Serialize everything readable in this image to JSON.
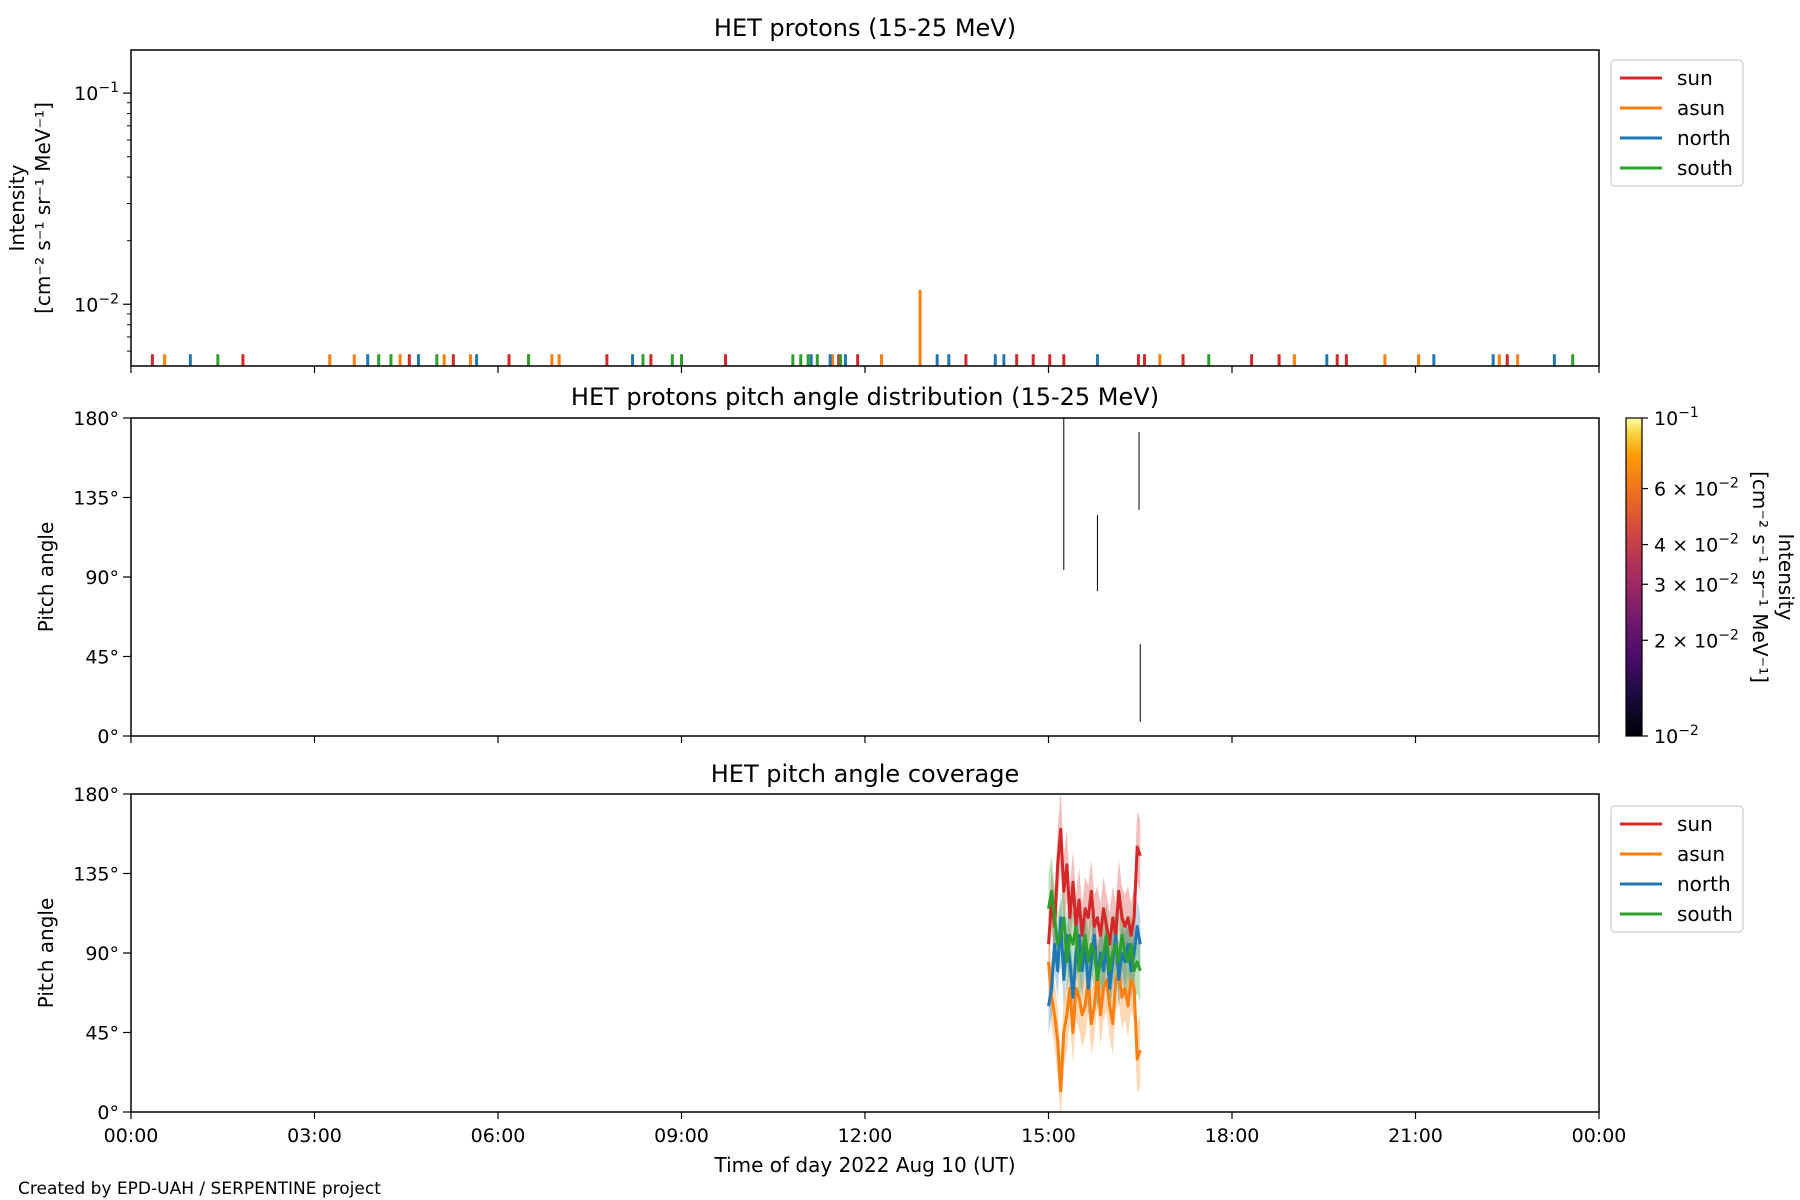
{
  "footer": "Created by EPD-UAH / SERPENTINE project",
  "xaxis": {
    "label": "Time of day 2022 Aug 10 (UT)",
    "range_hours": [
      0,
      24
    ],
    "ticks": [
      0,
      3,
      6,
      9,
      12,
      15,
      18,
      21,
      24
    ],
    "tick_labels": [
      "00:00",
      "03:00",
      "06:00",
      "09:00",
      "12:00",
      "15:00",
      "18:00",
      "21:00",
      "00:00"
    ]
  },
  "colors": {
    "sun": "#d62728",
    "asun": "#ff7f0e",
    "north": "#1f77b4",
    "south": "#2ca02c"
  },
  "chart_data": [
    {
      "type": "line",
      "title": "HET protons (15-25 MeV)",
      "ylabel": [
        "Intensity",
        "[cm⁻² s⁻¹ sr⁻¹ MeV⁻¹]"
      ],
      "yscale": "log",
      "ylim": [
        0.0051,
        0.16
      ],
      "yticks": [
        {
          "value": 0.1,
          "base": "10",
          "exp": "−1"
        },
        {
          "value": 0.01,
          "base": "10",
          "exp": "−2"
        }
      ],
      "legend": {
        "position": "outside-right",
        "entries": [
          "sun",
          "asun",
          "north",
          "south"
        ]
      },
      "baseline": 0.005,
      "spike_value": 0.0058,
      "series": [
        {
          "name": "sun",
          "spikes": [
            {
              "x": 0.35
            },
            {
              "x": 1.83
            },
            {
              "x": 4.55
            },
            {
              "x": 5.27
            },
            {
              "x": 6.18
            },
            {
              "x": 7.78
            },
            {
              "x": 8.5
            },
            {
              "x": 9.72
            },
            {
              "x": 11.57
            },
            {
              "x": 11.88
            },
            {
              "x": 13.65
            },
            {
              "x": 14.48
            },
            {
              "x": 14.75
            },
            {
              "x": 15.02
            },
            {
              "x": 15.25
            },
            {
              "x": 16.47
            },
            {
              "x": 16.57
            },
            {
              "x": 17.2
            },
            {
              "x": 18.32
            },
            {
              "x": 18.77
            },
            {
              "x": 19.72
            },
            {
              "x": 19.87
            },
            {
              "x": 22.5
            }
          ]
        },
        {
          "name": "asun",
          "spikes": [
            {
              "x": 0.55
            },
            {
              "x": 3.25
            },
            {
              "x": 3.65
            },
            {
              "x": 4.4
            },
            {
              "x": 5.12
            },
            {
              "x": 5.55
            },
            {
              "x": 6.5
            },
            {
              "x": 6.88
            },
            {
              "x": 7.0
            },
            {
              "x": 11.47
            },
            {
              "x": 12.27
            },
            {
              "x": 12.9,
              "y": 0.0117
            },
            {
              "x": 16.82
            },
            {
              "x": 19.02
            },
            {
              "x": 20.5
            },
            {
              "x": 21.05
            },
            {
              "x": 22.37
            },
            {
              "x": 22.67
            }
          ]
        },
        {
          "name": "north",
          "spikes": [
            {
              "x": 0.97
            },
            {
              "x": 3.87
            },
            {
              "x": 4.7
            },
            {
              "x": 5.65
            },
            {
              "x": 8.2
            },
            {
              "x": 11.12
            },
            {
              "x": 11.43
            },
            {
              "x": 11.68
            },
            {
              "x": 13.18
            },
            {
              "x": 13.37
            },
            {
              "x": 14.13
            },
            {
              "x": 14.27
            },
            {
              "x": 15.8
            },
            {
              "x": 19.55
            },
            {
              "x": 21.3
            },
            {
              "x": 22.27
            },
            {
              "x": 23.27
            }
          ]
        },
        {
          "name": "south",
          "spikes": [
            {
              "x": 1.42
            },
            {
              "x": 4.05
            },
            {
              "x": 4.25
            },
            {
              "x": 5.0
            },
            {
              "x": 6.5
            },
            {
              "x": 8.37
            },
            {
              "x": 8.85
            },
            {
              "x": 9.0
            },
            {
              "x": 10.82
            },
            {
              "x": 10.95
            },
            {
              "x": 11.07
            },
            {
              "x": 11.22
            },
            {
              "x": 11.6
            },
            {
              "x": 17.62
            },
            {
              "x": 23.57
            }
          ]
        }
      ]
    },
    {
      "type": "heatmap",
      "title": "HET protons pitch angle distribution (15-25 MeV)",
      "ylabel": "Pitch angle",
      "ylim": [
        0,
        180
      ],
      "yticks": [
        0,
        45,
        90,
        135,
        180
      ],
      "ytick_labels": [
        "0°",
        "45°",
        "90°",
        "135°",
        "180°"
      ],
      "segments": [
        {
          "x": 15.25,
          "y0": 94,
          "y1": 180
        },
        {
          "x": 15.8,
          "y0": 82,
          "y1": 125
        },
        {
          "x": 16.48,
          "y0": 128,
          "y1": 172
        },
        {
          "x": 16.5,
          "y0": 8,
          "y1": 52
        }
      ],
      "colorbar": {
        "label": [
          "Intensity",
          "[cm⁻² s⁻¹ sr⁻¹ MeV⁻¹]"
        ],
        "scale": "log",
        "range": [
          0.01,
          0.1
        ],
        "colormap": "inferno",
        "ticks": [
          {
            "value": 0.1,
            "mant": "",
            "exp": "−1"
          },
          {
            "value": 0.06,
            "mant": "6 × ",
            "exp": "−2"
          },
          {
            "value": 0.04,
            "mant": "4 × ",
            "exp": "−2"
          },
          {
            "value": 0.03,
            "mant": "3 × ",
            "exp": "−2"
          },
          {
            "value": 0.02,
            "mant": "2 × ",
            "exp": "−2"
          },
          {
            "value": 0.01,
            "mant": "",
            "exp": "−2"
          }
        ]
      }
    },
    {
      "type": "area",
      "title": "HET pitch angle coverage",
      "ylabel": "Pitch angle",
      "ylim": [
        0,
        180
      ],
      "yticks": [
        0,
        45,
        90,
        135,
        180
      ],
      "ytick_labels": [
        "0°",
        "45°",
        "90°",
        "135°",
        "180°"
      ],
      "legend": {
        "position": "outside-right",
        "entries": [
          "sun",
          "asun",
          "north",
          "south"
        ]
      },
      "x": [
        15.0,
        15.05,
        15.1,
        15.15,
        15.2,
        15.25,
        15.3,
        15.35,
        15.4,
        15.45,
        15.5,
        15.55,
        15.6,
        15.65,
        15.7,
        15.75,
        15.8,
        15.85,
        15.9,
        15.95,
        16.0,
        16.05,
        16.1,
        16.15,
        16.2,
        16.25,
        16.3,
        16.35,
        16.4,
        16.45,
        16.5
      ],
      "series": [
        {
          "name": "sun",
          "mean": [
            95,
            120,
            105,
            140,
            160,
            125,
            140,
            110,
            130,
            105,
            120,
            100,
            115,
            110,
            125,
            105,
            110,
            100,
            115,
            105,
            95,
            110,
            100,
            125,
            110,
            105,
            110,
            100,
            110,
            150,
            145
          ],
          "spread": [
            15,
            18,
            18,
            20,
            22,
            20,
            20,
            18,
            18,
            18,
            18,
            18,
            18,
            18,
            18,
            18,
            18,
            18,
            18,
            18,
            18,
            18,
            18,
            18,
            18,
            18,
            18,
            18,
            18,
            20,
            20
          ]
        },
        {
          "name": "asun",
          "mean": [
            85,
            65,
            55,
            40,
            12,
            45,
            55,
            70,
            45,
            70,
            65,
            55,
            60,
            75,
            50,
            60,
            80,
            55,
            70,
            75,
            60,
            50,
            75,
            80,
            65,
            70,
            60,
            75,
            70,
            30,
            35
          ],
          "spread": [
            18,
            18,
            18,
            20,
            20,
            20,
            20,
            18,
            18,
            18,
            18,
            18,
            18,
            18,
            18,
            18,
            18,
            18,
            18,
            18,
            18,
            18,
            18,
            18,
            18,
            18,
            18,
            18,
            18,
            20,
            20
          ]
        },
        {
          "name": "north",
          "mean": [
            60,
            70,
            95,
            80,
            110,
            75,
            100,
            85,
            65,
            90,
            100,
            80,
            95,
            70,
            85,
            100,
            75,
            90,
            80,
            95,
            70,
            85,
            100,
            75,
            90,
            85,
            95,
            80,
            90,
            105,
            95
          ],
          "spread": [
            16,
            16,
            16,
            16,
            16,
            16,
            16,
            16,
            16,
            16,
            16,
            16,
            16,
            16,
            16,
            16,
            16,
            16,
            16,
            16,
            16,
            16,
            16,
            16,
            16,
            16,
            16,
            16,
            16,
            16,
            16
          ]
        },
        {
          "name": "south",
          "mean": [
            115,
            125,
            110,
            95,
            100,
            110,
            85,
            100,
            95,
            105,
            80,
            90,
            100,
            85,
            95,
            90,
            75,
            85,
            90,
            100,
            80,
            90,
            95,
            85,
            100,
            90,
            85,
            95,
            80,
            85,
            80
          ],
          "spread": [
            20,
            20,
            18,
            18,
            18,
            18,
            18,
            18,
            18,
            18,
            18,
            18,
            18,
            18,
            18,
            18,
            18,
            18,
            18,
            18,
            18,
            18,
            18,
            18,
            18,
            18,
            18,
            18,
            18,
            18,
            18
          ]
        }
      ]
    }
  ]
}
